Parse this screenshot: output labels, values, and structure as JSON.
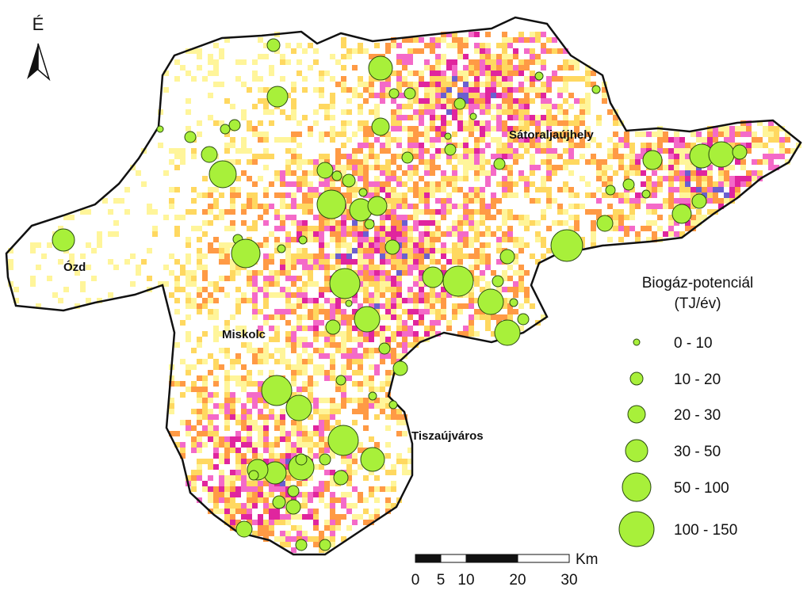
{
  "north_arrow": "É",
  "places": [
    "Ózd",
    "Miskolc",
    "Sátoraljaújhely",
    "Tiszaújváros"
  ],
  "legend": {
    "title": "Biogáz-potenciál",
    "unit": "(TJ/év)",
    "classes": [
      "0 - 10",
      "10 - 20",
      "20 - 30",
      "30 - 50",
      "50 - 100",
      "100 - 150"
    ]
  },
  "scale_bar": {
    "unit": "Km",
    "labels": [
      0,
      5,
      10,
      20,
      30
    ]
  }
}
